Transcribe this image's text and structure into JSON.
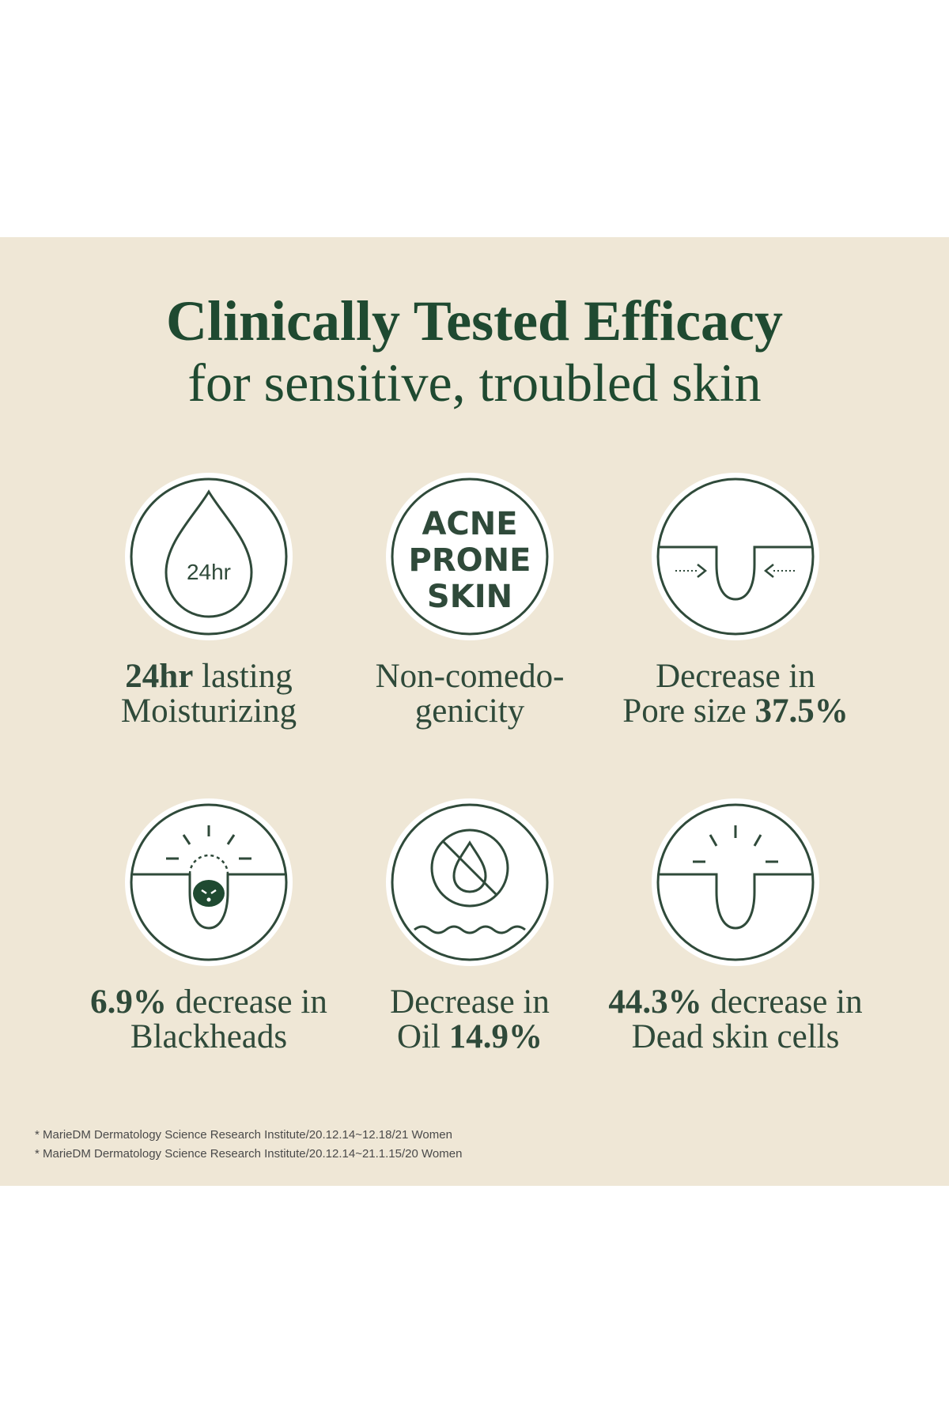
{
  "heading": {
    "title": "Clinically Tested Efficacy",
    "subtitle": "for sensitive, troubled skin"
  },
  "features": [
    {
      "icon": "droplet-icon",
      "icon_text": "24hr",
      "line1_bold": "24hr",
      "line1_rest": " lasting",
      "line2": "Moisturizing"
    },
    {
      "icon": "acne-prone-skin-badge-icon",
      "icon_text_lines": [
        "ACNE",
        "PRONE",
        "SKIN"
      ],
      "line1": "Non-comedo-",
      "line2": "genicity"
    },
    {
      "icon": "pore-shrink-icon",
      "line1": "Decrease in",
      "line2_plain": "Pore size ",
      "line2_bold": "37.5%"
    },
    {
      "icon": "blackhead-icon",
      "line1_bold": "6.9%",
      "line1_rest": " decrease in",
      "line2": "Blackheads"
    },
    {
      "icon": "no-oil-icon",
      "line1": "Decrease in",
      "line2_plain": "Oil ",
      "line2_bold": "14.9%"
    },
    {
      "icon": "dead-skin-cells-icon",
      "line1_bold": "44.3%",
      "line1_rest": " decrease in",
      "line2": "Dead skin cells"
    }
  ],
  "footnotes": [
    "* MarieDM Dermatology Science Research Institute/20.12.14~12.18/21 Women",
    "* MarieDM Dermatology Science Research Institute/20.12.14~21.1.15/20 Women"
  ],
  "colors": {
    "background": "#efe7d6",
    "accent_green": "#1f4a31",
    "icon_stroke": "#2f4a3a",
    "circle_fill": "#ffffff"
  }
}
